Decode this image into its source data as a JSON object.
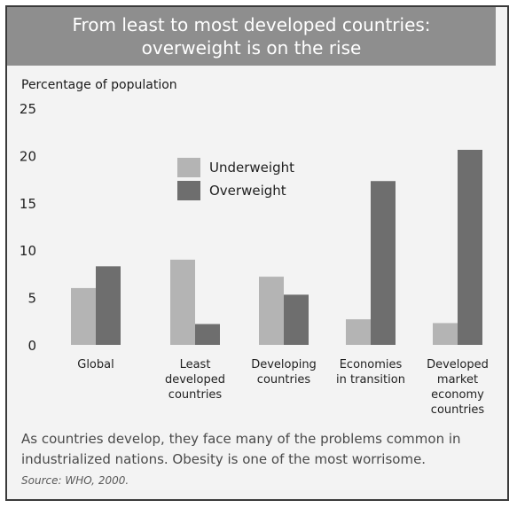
{
  "chart_data": {
    "type": "bar",
    "title_lines": [
      "From least to most developed countries:",
      "overweight is on the rise"
    ],
    "ylabel": "Percentage of population",
    "ylim": [
      0,
      25
    ],
    "yticks": [
      0,
      5,
      10,
      15,
      20,
      25
    ],
    "categories": [
      [
        "Global"
      ],
      [
        "Least",
        "developed",
        "countries"
      ],
      [
        "Developing",
        "countries"
      ],
      [
        "Economies",
        "in transition"
      ],
      [
        "Developed",
        "market",
        "economy",
        "countries"
      ]
    ],
    "series": [
      {
        "name": "Underweight",
        "color": "#b4b4b4",
        "values": [
          6,
          9,
          7.2,
          2.7,
          2.3
        ]
      },
      {
        "name": "Overweight",
        "color": "#6e6e6e",
        "values": [
          8.3,
          2.2,
          5.3,
          17.3,
          20.6
        ]
      }
    ],
    "grid": false,
    "legend_position": "top-center"
  },
  "caption": "As countries develop, they face many of the problems common in industrialized nations. Obesity is one of the most worrisome.",
  "source": "Source: WHO, 2000."
}
